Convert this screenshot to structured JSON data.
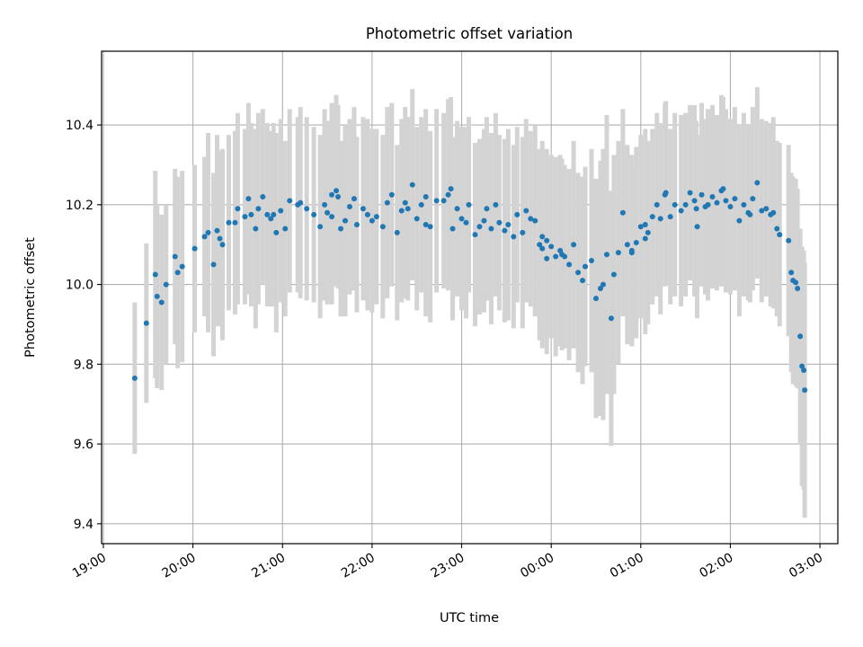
{
  "chart_data": {
    "type": "scatter",
    "title": "Photometric offset variation",
    "xlabel": "UTC time",
    "ylabel": "Photometric offset",
    "x_unit": "hours after 19:00 UTC",
    "xlim": [
      -0.02,
      8.2
    ],
    "ylim": [
      9.35,
      10.585
    ],
    "x_ticks": [
      "19:00",
      "20:00",
      "21:00",
      "22:00",
      "23:00",
      "00:00",
      "01:00",
      "02:00",
      "03:00"
    ],
    "y_ticks": [
      "9.4",
      "9.6",
      "9.8",
      "10.0",
      "10.2",
      "10.4"
    ],
    "y_tick_values": [
      9.4,
      9.6,
      9.8,
      10.0,
      10.2,
      10.4
    ],
    "grid": true,
    "colors": {
      "points": "#1f77b4",
      "errorbars": "#d3d3d3",
      "grid": "#b0b0b0"
    },
    "series": [
      {
        "values": [
          [
            0.35,
            9.765,
            0.19
          ],
          [
            0.48,
            9.903,
            0.2
          ],
          [
            0.58,
            10.025,
            0.26
          ],
          [
            0.6,
            9.97,
            0.23
          ],
          [
            0.65,
            9.955,
            0.22
          ],
          [
            0.7,
            10.0,
            0.2
          ],
          [
            0.8,
            10.07,
            0.22
          ],
          [
            0.83,
            10.03,
            0.24
          ],
          [
            0.88,
            10.045,
            0.24
          ],
          [
            1.02,
            10.09,
            0.21
          ],
          [
            1.13,
            10.12,
            0.2
          ],
          [
            1.17,
            10.13,
            0.25
          ],
          [
            1.23,
            10.05,
            0.23
          ],
          [
            1.27,
            10.135,
            0.24
          ],
          [
            1.3,
            10.115,
            0.22
          ],
          [
            1.33,
            10.1,
            0.24
          ],
          [
            1.4,
            10.155,
            0.22
          ],
          [
            1.47,
            10.155,
            0.23
          ],
          [
            1.5,
            10.19,
            0.24
          ],
          [
            1.58,
            10.17,
            0.22
          ],
          [
            1.62,
            10.215,
            0.24
          ],
          [
            1.65,
            10.175,
            0.23
          ],
          [
            1.7,
            10.14,
            0.25
          ],
          [
            1.73,
            10.19,
            0.24
          ],
          [
            1.78,
            10.22,
            0.22
          ],
          [
            1.83,
            10.175,
            0.23
          ],
          [
            1.87,
            10.165,
            0.22
          ],
          [
            1.93,
            10.13,
            0.25
          ],
          [
            1.98,
            10.185,
            0.23
          ],
          [
            2.03,
            10.14,
            0.22
          ],
          [
            2.08,
            10.21,
            0.23
          ],
          [
            2.17,
            10.2,
            0.22
          ],
          [
            2.2,
            10.205,
            0.24
          ],
          [
            2.27,
            10.19,
            0.23
          ],
          [
            2.35,
            10.175,
            0.22
          ],
          [
            2.42,
            10.145,
            0.23
          ],
          [
            2.47,
            10.2,
            0.24
          ],
          [
            2.5,
            10.18,
            0.23
          ],
          [
            2.55,
            10.17,
            0.22
          ],
          [
            2.6,
            10.235,
            0.24
          ],
          [
            2.62,
            10.22,
            0.23
          ],
          [
            2.65,
            10.14,
            0.22
          ],
          [
            2.7,
            10.16,
            0.24
          ],
          [
            2.8,
            10.215,
            0.23
          ],
          [
            2.83,
            10.15,
            0.22
          ],
          [
            2.9,
            10.19,
            0.23
          ],
          [
            2.95,
            10.175,
            0.24
          ],
          [
            3.0,
            10.16,
            0.23
          ],
          [
            3.05,
            10.17,
            0.22
          ],
          [
            3.12,
            10.145,
            0.23
          ],
          [
            3.17,
            10.205,
            0.24
          ],
          [
            3.22,
            10.225,
            0.23
          ],
          [
            3.28,
            10.13,
            0.22
          ],
          [
            3.33,
            10.185,
            0.23
          ],
          [
            3.37,
            10.205,
            0.24
          ],
          [
            3.4,
            10.19,
            0.23
          ],
          [
            3.45,
            10.25,
            0.24
          ],
          [
            3.5,
            10.165,
            0.23
          ],
          [
            3.55,
            10.2,
            0.22
          ],
          [
            3.6,
            10.15,
            0.23
          ],
          [
            3.65,
            10.145,
            0.24
          ],
          [
            3.72,
            10.21,
            0.23
          ],
          [
            3.8,
            10.21,
            0.22
          ],
          [
            3.85,
            10.225,
            0.24
          ],
          [
            3.88,
            10.24,
            0.23
          ],
          [
            3.95,
            10.19,
            0.22
          ],
          [
            4.0,
            10.165,
            0.23
          ],
          [
            4.05,
            10.155,
            0.24
          ],
          [
            4.08,
            10.2,
            0.22
          ],
          [
            4.15,
            10.125,
            0.23
          ],
          [
            4.2,
            10.145,
            0.22
          ],
          [
            4.28,
            10.19,
            0.23
          ],
          [
            4.33,
            10.14,
            0.24
          ],
          [
            4.38,
            10.2,
            0.23
          ],
          [
            4.42,
            10.155,
            0.22
          ],
          [
            4.48,
            10.135,
            0.23
          ],
          [
            4.52,
            10.15,
            0.24
          ],
          [
            4.58,
            10.12,
            0.23
          ],
          [
            4.62,
            10.175,
            0.22
          ],
          [
            4.68,
            10.13,
            0.24
          ],
          [
            4.72,
            10.185,
            0.23
          ],
          [
            4.77,
            10.165,
            0.22
          ],
          [
            4.82,
            10.16,
            0.24
          ],
          [
            4.87,
            10.1,
            0.24
          ],
          [
            4.9,
            10.09,
            0.25
          ],
          [
            4.95,
            10.065,
            0.24
          ],
          [
            5.0,
            10.095,
            0.23
          ],
          [
            5.05,
            10.07,
            0.25
          ],
          [
            5.1,
            10.085,
            0.24
          ],
          [
            5.15,
            10.07,
            0.23
          ],
          [
            5.2,
            10.05,
            0.24
          ],
          [
            5.25,
            10.1,
            0.26
          ],
          [
            5.3,
            10.03,
            0.25
          ],
          [
            5.35,
            10.01,
            0.26
          ],
          [
            5.38,
            10.045,
            0.25
          ],
          [
            5.45,
            10.06,
            0.28
          ],
          [
            5.5,
            9.965,
            0.3
          ],
          [
            5.55,
            9.99,
            0.32
          ],
          [
            5.58,
            10.0,
            0.34
          ],
          [
            5.62,
            10.075,
            0.35
          ],
          [
            5.67,
            9.915,
            0.32
          ],
          [
            5.7,
            10.025,
            0.3
          ],
          [
            5.75,
            10.08,
            0.28
          ],
          [
            5.8,
            10.18,
            0.26
          ],
          [
            5.85,
            10.1,
            0.25
          ],
          [
            5.9,
            10.085,
            0.24
          ],
          [
            5.95,
            10.105,
            0.24
          ],
          [
            6.0,
            10.145,
            0.23
          ],
          [
            6.05,
            10.15,
            0.24
          ],
          [
            6.08,
            10.13,
            0.23
          ],
          [
            6.13,
            10.17,
            0.22
          ],
          [
            6.18,
            10.2,
            0.23
          ],
          [
            6.22,
            10.165,
            0.24
          ],
          [
            6.28,
            10.23,
            0.23
          ],
          [
            6.33,
            10.17,
            0.22
          ],
          [
            6.38,
            10.2,
            0.23
          ],
          [
            6.45,
            10.185,
            0.24
          ],
          [
            6.5,
            10.2,
            0.23
          ],
          [
            6.55,
            10.23,
            0.22
          ],
          [
            6.6,
            10.21,
            0.24
          ],
          [
            6.63,
            10.145,
            0.23
          ],
          [
            6.68,
            10.225,
            0.23
          ],
          [
            6.72,
            10.195,
            0.22
          ],
          [
            6.75,
            10.2,
            0.24
          ],
          [
            6.8,
            10.22,
            0.23
          ],
          [
            6.85,
            10.205,
            0.22
          ],
          [
            6.9,
            10.235,
            0.24
          ],
          [
            6.95,
            10.21,
            0.23
          ],
          [
            7.0,
            10.195,
            0.22
          ],
          [
            7.05,
            10.215,
            0.23
          ],
          [
            7.1,
            10.16,
            0.24
          ],
          [
            7.15,
            10.2,
            0.23
          ],
          [
            7.2,
            10.18,
            0.22
          ],
          [
            7.25,
            10.215,
            0.23
          ],
          [
            7.3,
            10.255,
            0.24
          ],
          [
            7.35,
            10.185,
            0.23
          ],
          [
            7.4,
            10.19,
            0.22
          ],
          [
            7.45,
            10.175,
            0.23
          ],
          [
            7.48,
            10.18,
            0.24
          ],
          [
            7.52,
            10.14,
            0.22
          ],
          [
            7.55,
            10.125,
            0.23
          ],
          [
            7.65,
            10.11,
            0.24
          ],
          [
            7.68,
            10.03,
            0.25
          ],
          [
            7.7,
            10.01,
            0.26
          ],
          [
            7.73,
            10.005,
            0.26
          ],
          [
            7.75,
            9.99,
            0.25
          ],
          [
            7.78,
            9.87,
            0.27
          ],
          [
            7.8,
            9.795,
            0.3
          ],
          [
            7.82,
            9.785,
            0.3
          ],
          [
            7.83,
            9.735,
            0.32
          ],
          [
            3.6,
            10.22,
            0.22
          ],
          [
            3.9,
            10.14,
            0.23
          ],
          [
            4.25,
            10.16,
            0.23
          ],
          [
            2.75,
            10.195,
            0.22
          ],
          [
            1.9,
            10.175,
            0.23
          ],
          [
            6.62,
            10.19,
            0.22
          ],
          [
            6.92,
            10.24,
            0.23
          ],
          [
            7.22,
            10.175,
            0.22
          ],
          [
            6.27,
            10.225,
            0.23
          ],
          [
            6.05,
            10.115,
            0.24
          ],
          [
            5.9,
            10.08,
            0.23
          ],
          [
            4.95,
            10.11,
            0.23
          ],
          [
            5.12,
            10.075,
            0.24
          ],
          [
            4.9,
            10.12,
            0.24
          ],
          [
            2.55,
            10.225,
            0.23
          ]
        ]
      }
    ]
  }
}
